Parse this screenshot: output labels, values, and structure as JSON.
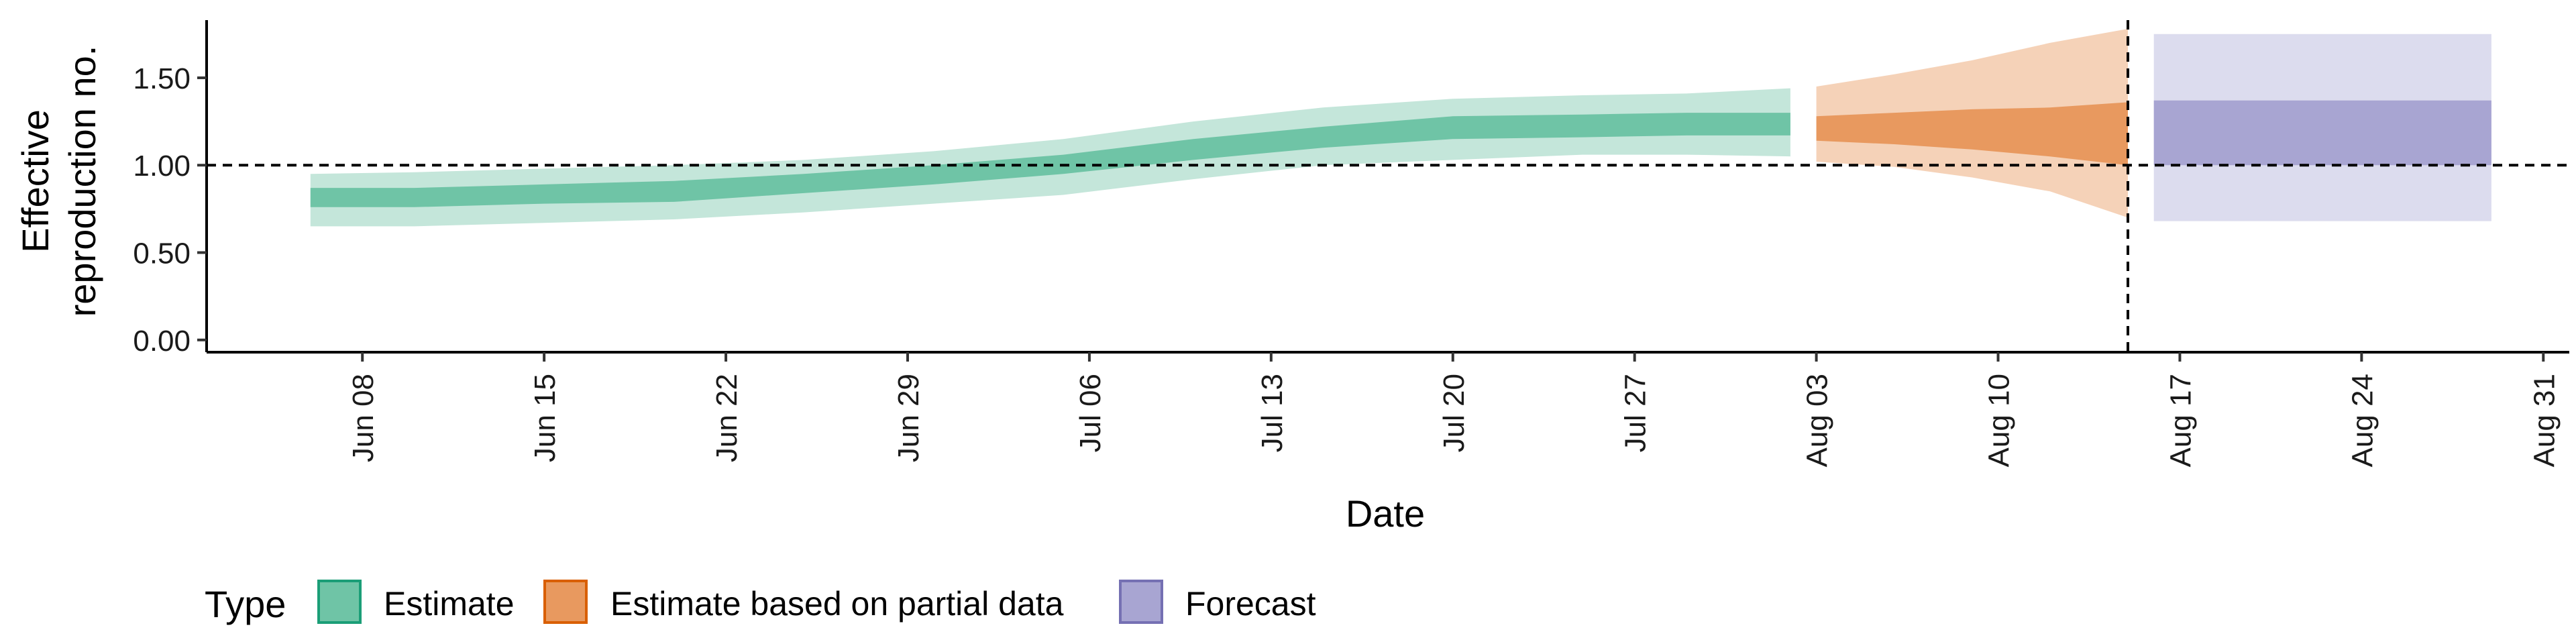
{
  "chart_data": {
    "type": "area",
    "xlabel": "Date",
    "ylabel_lines": [
      "Effective",
      "reproduction no."
    ],
    "y_ticks": [
      "0.00",
      "0.50",
      "1.00",
      "1.50"
    ],
    "y_tick_values": [
      0,
      0.5,
      1.0,
      1.5
    ],
    "ylim": [
      -0.07,
      1.83
    ],
    "xlim": [
      "2020-06-02",
      "2020-09-01"
    ],
    "x_ticks": [
      "Jun 08",
      "Jun 15",
      "Jun 22",
      "Jun 29",
      "Jul 06",
      "Jul 13",
      "Jul 20",
      "Jul 27",
      "Aug 03",
      "Aug 10",
      "Aug 17",
      "Aug 24",
      "Aug 31"
    ],
    "x_tick_dates": [
      "2020-06-08",
      "2020-06-15",
      "2020-06-22",
      "2020-06-29",
      "2020-07-06",
      "2020-07-13",
      "2020-07-20",
      "2020-07-27",
      "2020-08-03",
      "2020-08-10",
      "2020-08-17",
      "2020-08-24",
      "2020-08-31"
    ],
    "hline": 1.0,
    "vline_date": "2020-08-15",
    "legend": {
      "title": "Type",
      "position": "bottom",
      "entries": [
        {
          "label": "Estimate",
          "fill": "#6fc4a6",
          "stroke": "#1b9e77"
        },
        {
          "label": "Estimate based on partial data",
          "fill": "#e8995f",
          "stroke": "#d95f02"
        },
        {
          "label": "Forecast",
          "fill": "#a8a5d2",
          "stroke": "#7570b3"
        }
      ]
    },
    "series": [
      {
        "name": "Estimate",
        "outer_color": "#c4e6da",
        "inner_color": "#6fc4a6",
        "points": [
          {
            "date": "2020-06-06",
            "lo90": 0.65,
            "lo50": 0.76,
            "hi50": 0.87,
            "hi90": 0.95
          },
          {
            "date": "2020-06-10",
            "lo90": 0.65,
            "lo50": 0.76,
            "hi50": 0.87,
            "hi90": 0.96
          },
          {
            "date": "2020-06-15",
            "lo90": 0.67,
            "lo50": 0.78,
            "hi50": 0.89,
            "hi90": 0.98
          },
          {
            "date": "2020-06-20",
            "lo90": 0.69,
            "lo50": 0.79,
            "hi50": 0.91,
            "hi90": 1.0
          },
          {
            "date": "2020-06-25",
            "lo90": 0.73,
            "lo50": 0.84,
            "hi50": 0.95,
            "hi90": 1.03
          },
          {
            "date": "2020-06-30",
            "lo90": 0.78,
            "lo50": 0.89,
            "hi50": 1.0,
            "hi90": 1.08
          },
          {
            "date": "2020-07-05",
            "lo90": 0.83,
            "lo50": 0.95,
            "hi50": 1.06,
            "hi90": 1.15
          },
          {
            "date": "2020-07-10",
            "lo90": 0.92,
            "lo50": 1.03,
            "hi50": 1.15,
            "hi90": 1.25
          },
          {
            "date": "2020-07-15",
            "lo90": 1.0,
            "lo50": 1.1,
            "hi50": 1.22,
            "hi90": 1.33
          },
          {
            "date": "2020-07-20",
            "lo90": 1.03,
            "lo50": 1.15,
            "hi50": 1.28,
            "hi90": 1.38
          },
          {
            "date": "2020-07-25",
            "lo90": 1.06,
            "lo50": 1.16,
            "hi50": 1.29,
            "hi90": 1.4
          },
          {
            "date": "2020-07-29",
            "lo90": 1.06,
            "lo50": 1.17,
            "hi50": 1.3,
            "hi90": 1.41
          },
          {
            "date": "2020-08-02",
            "lo90": 1.05,
            "lo50": 1.17,
            "hi50": 1.3,
            "hi90": 1.44
          }
        ]
      },
      {
        "name": "Estimate based on partial data",
        "outer_color": "#f5d2b8",
        "inner_color": "#e8995f",
        "points": [
          {
            "date": "2020-08-03",
            "lo90": 1.02,
            "lo50": 1.14,
            "hi50": 1.28,
            "hi90": 1.45
          },
          {
            "date": "2020-08-06",
            "lo90": 0.99,
            "lo50": 1.12,
            "hi50": 1.3,
            "hi90": 1.52
          },
          {
            "date": "2020-08-09",
            "lo90": 0.93,
            "lo50": 1.09,
            "hi50": 1.32,
            "hi90": 1.6
          },
          {
            "date": "2020-08-12",
            "lo90": 0.85,
            "lo50": 1.05,
            "hi50": 1.33,
            "hi90": 1.7
          },
          {
            "date": "2020-08-15",
            "lo90": 0.7,
            "lo50": 1.0,
            "hi50": 1.36,
            "hi90": 1.78
          }
        ]
      },
      {
        "name": "Forecast",
        "outer_color": "#dcdcee",
        "inner_color": "#a8a5d2",
        "points": [
          {
            "date": "2020-08-16",
            "lo90": 0.68,
            "lo50": 1.0,
            "hi50": 1.37,
            "hi90": 1.75
          },
          {
            "date": "2020-08-29",
            "lo90": 0.68,
            "lo50": 1.0,
            "hi50": 1.37,
            "hi90": 1.75
          }
        ]
      }
    ]
  }
}
